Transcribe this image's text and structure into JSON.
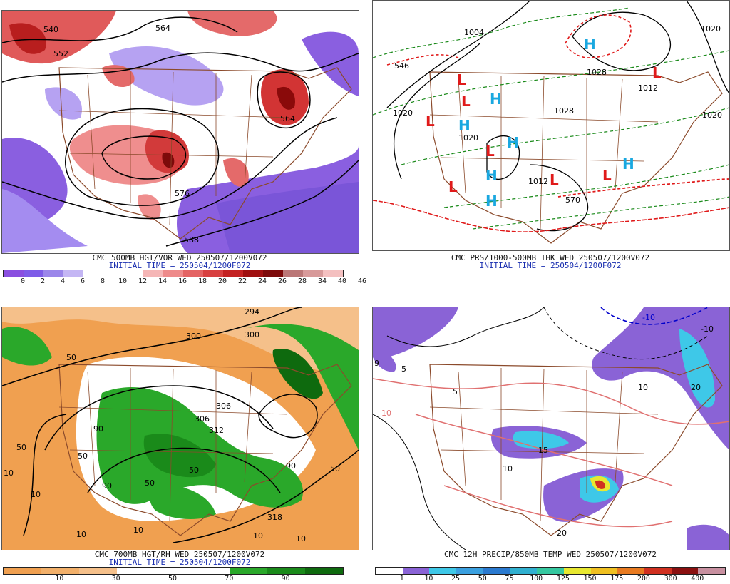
{
  "panels": [
    {
      "id": "p1",
      "caption1": "CMC 500MB HGT/VOR WED 250507/1200V072",
      "caption2": "INITIAL TIME = 250504/1200F072",
      "contour_labels": [
        "540",
        "552",
        "564",
        "564",
        "576",
        "588"
      ],
      "legend": {
        "colors": [
          "#8a4fe0",
          "#7e5ce8",
          "#9b86ea",
          "#c4b6f4",
          "#ffffff",
          "#ffffff",
          "#ffffff",
          "#f5b6b6",
          "#ee8a8a",
          "#e46363",
          "#d84040",
          "#c42222",
          "#a01010",
          "#7d0a0a",
          "#bb7777",
          "#d89a9a",
          "#f4c0c0"
        ],
        "ticks": [
          "0",
          "2",
          "4",
          "6",
          "8",
          "10",
          "12",
          "14",
          "16",
          "18",
          "20",
          "22",
          "24",
          "26",
          "28",
          "34",
          "40",
          "46"
        ]
      }
    },
    {
      "id": "p2",
      "caption1": "CMC PRS/1000-500MB THK WED 250507/1200V072",
      "caption2": "INITIAL TIME = 250504/1200F072",
      "contour_labels": [
        "1004",
        "1020",
        "1020",
        "1028",
        "1028",
        "1012",
        "1020",
        "1012",
        "1020",
        "546",
        "570"
      ],
      "highs": [
        "H",
        "H",
        "H",
        "H",
        "H",
        "H",
        "H"
      ],
      "lows": [
        "L",
        "L",
        "L",
        "L",
        "L",
        "L",
        "L",
        "L"
      ],
      "high_color": "#1aa8e0",
      "low_color": "#e01a1a"
    },
    {
      "id": "p3",
      "caption1": "CMC 700MB HGT/RH WED 250507/1200V072",
      "caption2": "INITIAL TIME = 250504/1200F072",
      "contour_labels": [
        "294",
        "300",
        "300",
        "306",
        "306",
        "312",
        "318",
        "50",
        "50",
        "50",
        "50",
        "50",
        "90",
        "90",
        "90",
        "10",
        "10",
        "10",
        "10",
        "10",
        "10",
        "50"
      ],
      "legend": {
        "colors": [
          "#f0a050",
          "#f2b06a",
          "#f5c08a",
          "#ffffff",
          "#ffffff",
          "#ffffff",
          "#2aa82a",
          "#1a8a1a",
          "#0e6a0e"
        ],
        "ticks": [
          "10",
          "30",
          "50",
          "70",
          "90"
        ]
      }
    },
    {
      "id": "p4",
      "caption1": "CMC 12H PRECIP/850MB TEMP WED 250507/1200V072",
      "caption2": "",
      "contour_labels": [
        "-10",
        "10",
        "15",
        "10",
        "20",
        "20",
        "5",
        "5",
        "10",
        "-10",
        "9"
      ],
      "legend": {
        "colors": [
          "#ffffff",
          "#8a63d6",
          "#3ec8e8",
          "#3aa0e0",
          "#2a7ad0",
          "#30b0d0",
          "#35c8a0",
          "#e8e830",
          "#f0c020",
          "#e87a20",
          "#d03020",
          "#8a1010",
          "#c890a0"
        ],
        "ticks": [
          "1",
          "10",
          "25",
          "50",
          "75",
          "100",
          "125",
          "150",
          "175",
          "200",
          "300",
          "400"
        ]
      }
    }
  ]
}
